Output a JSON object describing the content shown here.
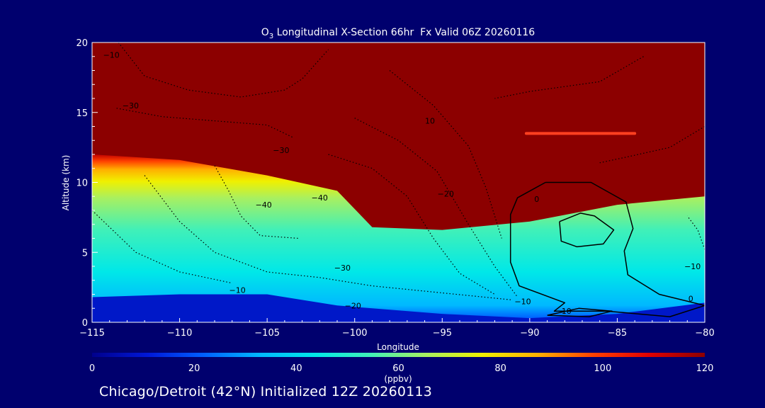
{
  "chart_data": {
    "type": "heatmap",
    "title": "O3 Longitudinal X-Section 66hr  Fx Valid 06Z 20260116",
    "title_parts": {
      "species": "O",
      "subscript": "3",
      "rest": " Longitudinal X-Section 66hr  Fx Valid 06Z 20260116"
    },
    "xlabel": "Longitude",
    "ylabel": "Altitude (km)",
    "xlim": [
      -115,
      -80
    ],
    "ylim": [
      0,
      20
    ],
    "x_ticks": [
      -115,
      -110,
      -105,
      -100,
      -95,
      -90,
      -85,
      -80
    ],
    "x_tick_labels": [
      "−115",
      "−110",
      "−105",
      "−100",
      "−95",
      "−90",
      "−85",
      "−80"
    ],
    "y_ticks": [
      0,
      5,
      10,
      15,
      20
    ],
    "y_tick_labels": [
      "0",
      "5",
      "10",
      "15",
      "20"
    ],
    "colorbar": {
      "min": 0,
      "max": 120,
      "ticks": [
        0,
        20,
        40,
        60,
        80,
        100,
        120
      ],
      "tick_labels": [
        "0",
        "20",
        "40",
        "60",
        "80",
        "100",
        "120"
      ],
      "units": "(ppbv)",
      "colors": [
        "#00008c",
        "#0018d8",
        "#0060ff",
        "#00b8ff",
        "#00e8e8",
        "#40f0b8",
        "#a8f060",
        "#f0f000",
        "#ffb000",
        "#ff4000",
        "#e00000",
        "#8c0000"
      ]
    },
    "field": {
      "description_points": [
        {
          "x": -115,
          "tropopause_km": 12.0,
          "surface_low_km": 1.8
        },
        {
          "x": -110,
          "tropopause_km": 11.6,
          "surface_low_km": 2.0
        },
        {
          "x": -105,
          "tropopause_km": 10.5,
          "surface_low_km": 2.0
        },
        {
          "x": -101,
          "tropopause_km": 9.4,
          "surface_low_km": 1.2
        },
        {
          "x": -99,
          "tropopause_km": 6.8,
          "surface_low_km": 1.0
        },
        {
          "x": -95,
          "tropopause_km": 6.6,
          "surface_low_km": 0.6
        },
        {
          "x": -90,
          "tropopause_km": 7.2,
          "surface_low_km": 0.3
        },
        {
          "x": -85,
          "tropopause_km": 8.4,
          "surface_low_km": 0.6
        },
        {
          "x": -80,
          "tropopause_km": 9.0,
          "surface_low_km": 1.4
        }
      ]
    },
    "contour_labels": [
      {
        "text": "−10",
        "x": -113.9,
        "y": 18.9
      },
      {
        "text": "−30",
        "x": -112.8,
        "y": 15.3
      },
      {
        "text": "−30",
        "x": -104.2,
        "y": 12.1
      },
      {
        "text": "10",
        "x": -95.7,
        "y": 14.2
      },
      {
        "text": "−40",
        "x": -105.2,
        "y": 8.2
      },
      {
        "text": "−40",
        "x": -102.0,
        "y": 8.7
      },
      {
        "text": "−20",
        "x": -94.8,
        "y": 9.0
      },
      {
        "text": "−30",
        "x": -100.7,
        "y": 3.7
      },
      {
        "text": "−10",
        "x": -106.7,
        "y": 2.1
      },
      {
        "text": "−20",
        "x": -100.1,
        "y": 1.0
      },
      {
        "text": "−10",
        "x": -90.4,
        "y": 1.3
      },
      {
        "text": "0",
        "x": -89.6,
        "y": 8.6
      },
      {
        "text": "10",
        "x": -87.9,
        "y": 0.6
      },
      {
        "text": "−10",
        "x": -80.7,
        "y": 3.8
      },
      {
        "text": "0",
        "x": -80.8,
        "y": 1.5
      }
    ],
    "solid_contours": [
      {
        "level": 0,
        "points": [
          [
            -89.1,
            10.0
          ],
          [
            -86.5,
            10.0
          ],
          [
            -84.5,
            8.6
          ],
          [
            -84.1,
            6.7
          ],
          [
            -84.6,
            5.1
          ],
          [
            -84.4,
            3.4
          ],
          [
            -82.6,
            2.0
          ],
          [
            -80.0,
            1.2
          ],
          [
            -82.0,
            0.4
          ],
          [
            -85.6,
            0.8
          ],
          [
            -88.6,
            0.8
          ],
          [
            -88.0,
            1.4
          ],
          [
            -90.6,
            2.6
          ],
          [
            -91.1,
            4.3
          ],
          [
            -91.1,
            7.7
          ],
          [
            -90.7,
            8.9
          ],
          [
            -89.1,
            10.0
          ]
        ]
      },
      {
        "level": 10,
        "points": [
          [
            -88.3,
            7.2
          ],
          [
            -87.1,
            7.8
          ],
          [
            -86.3,
            7.6
          ],
          [
            -85.2,
            6.6
          ],
          [
            -85.8,
            5.6
          ],
          [
            -87.3,
            5.4
          ],
          [
            -88.2,
            5.8
          ],
          [
            -88.3,
            7.2
          ]
        ]
      },
      {
        "level": 10,
        "points": [
          [
            -89.0,
            0.5
          ],
          [
            -87.2,
            1.0
          ],
          [
            -85.3,
            0.8
          ],
          [
            -86.6,
            0.4
          ],
          [
            -89.0,
            0.5
          ]
        ]
      }
    ],
    "dotted_contours": [
      [
        [
          -113.5,
          20
        ],
        [
          -112.0,
          17.6
        ],
        [
          -109.5,
          16.6
        ],
        [
          -106.5,
          16.1
        ],
        [
          -104.0,
          16.6
        ],
        [
          -103.0,
          17.4
        ],
        [
          -101.5,
          19.5
        ]
      ],
      [
        [
          -113.6,
          15.3
        ],
        [
          -111.0,
          14.7
        ],
        [
          -108.0,
          14.4
        ],
        [
          -105.0,
          14.1
        ],
        [
          -103.5,
          13.2
        ]
      ],
      [
        [
          -108.0,
          11.2
        ],
        [
          -107.2,
          9.4
        ],
        [
          -106.5,
          7.6
        ],
        [
          -105.4,
          6.2
        ],
        [
          -103.2,
          6.0
        ]
      ],
      [
        [
          -112.0,
          10.5
        ],
        [
          -110.0,
          7.2
        ],
        [
          -108.0,
          5.0
        ],
        [
          -105.0,
          3.6
        ],
        [
          -102.0,
          3.2
        ],
        [
          -99.0,
          2.6
        ],
        [
          -95.0,
          2.1
        ],
        [
          -91.0,
          1.6
        ]
      ],
      [
        [
          -101.5,
          12.0
        ],
        [
          -99.0,
          11.0
        ],
        [
          -97.0,
          9.0
        ],
        [
          -95.5,
          6.0
        ],
        [
          -94.0,
          3.5
        ],
        [
          -92.0,
          2.0
        ]
      ],
      [
        [
          -100.0,
          14.6
        ],
        [
          -97.5,
          13.0
        ],
        [
          -95.3,
          10.8
        ],
        [
          -93.5,
          7.0
        ],
        [
          -92.0,
          4.0
        ],
        [
          -90.7,
          1.8
        ]
      ],
      [
        [
          -98.0,
          18.0
        ],
        [
          -95.5,
          15.5
        ],
        [
          -93.5,
          12.6
        ],
        [
          -92.5,
          9.6
        ],
        [
          -91.6,
          6.0
        ]
      ],
      [
        [
          -115.0,
          8.0
        ],
        [
          -112.5,
          5.0
        ],
        [
          -110.0,
          3.6
        ],
        [
          -107.0,
          2.8
        ]
      ],
      [
        [
          -83.5,
          19.0
        ],
        [
          -86.0,
          17.2
        ],
        [
          -90.0,
          16.5
        ],
        [
          -92.0,
          16.0
        ]
      ],
      [
        [
          -80.0,
          14.0
        ],
        [
          -82.0,
          12.5
        ],
        [
          -84.5,
          11.8
        ],
        [
          -86.0,
          11.4
        ]
      ],
      [
        [
          -80.0,
          5.2
        ],
        [
          -80.4,
          6.6
        ],
        [
          -81.0,
          7.6
        ]
      ]
    ],
    "highlight_streak": {
      "x": [
        -90.2,
        -84.0
      ],
      "y": 13.5
    }
  },
  "footer": "Chicago/Detroit (42°N) Initialized 12Z 20260113"
}
